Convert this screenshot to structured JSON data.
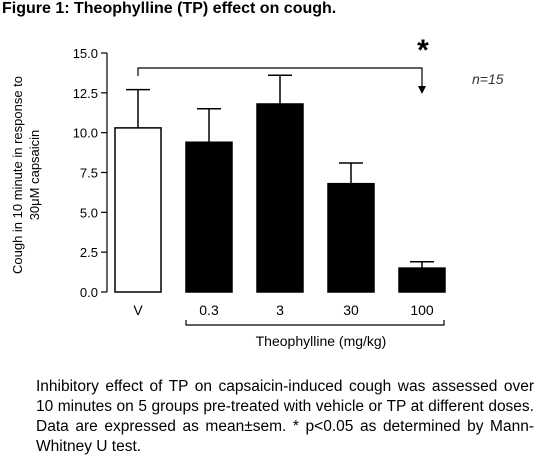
{
  "figure": {
    "title": "Figure 1: Theophylline (TP) effect on cough.",
    "caption": "Inhibitory effect of TP on capsaicin-induced cough was assessed over 10 minutes on 5 groups pre-treated with vehicle or TP at different doses. Data are expressed as mean±sem. * p<0.05 as determined by Mann-Whitney U test."
  },
  "chart_data": {
    "type": "bar",
    "categories": [
      "V",
      "0.3",
      "3",
      "30",
      "100"
    ],
    "values": [
      10.3,
      9.4,
      11.8,
      6.8,
      1.5
    ],
    "errors": [
      2.4,
      2.1,
      1.8,
      1.3,
      0.4
    ],
    "bar_colors": [
      "#ffffff",
      "#000000",
      "#000000",
      "#000000",
      "#000000"
    ],
    "ylabel": "Cough in 10 minute in response to 30μM capsaicin",
    "ylabel_lines": [
      "Cough in 10 minute in response to",
      "30μM capsaicin"
    ],
    "xlabel": "Theophylline (mg/kg)",
    "ylim": [
      0,
      15
    ],
    "yticks": [
      "0.0",
      "2.5",
      "5.0",
      "7.5",
      "10.0",
      "12.5",
      "15.0"
    ],
    "annotation": "n=15",
    "significance": {
      "marker": "*",
      "from": "V",
      "to": "100"
    },
    "grid": false
  }
}
